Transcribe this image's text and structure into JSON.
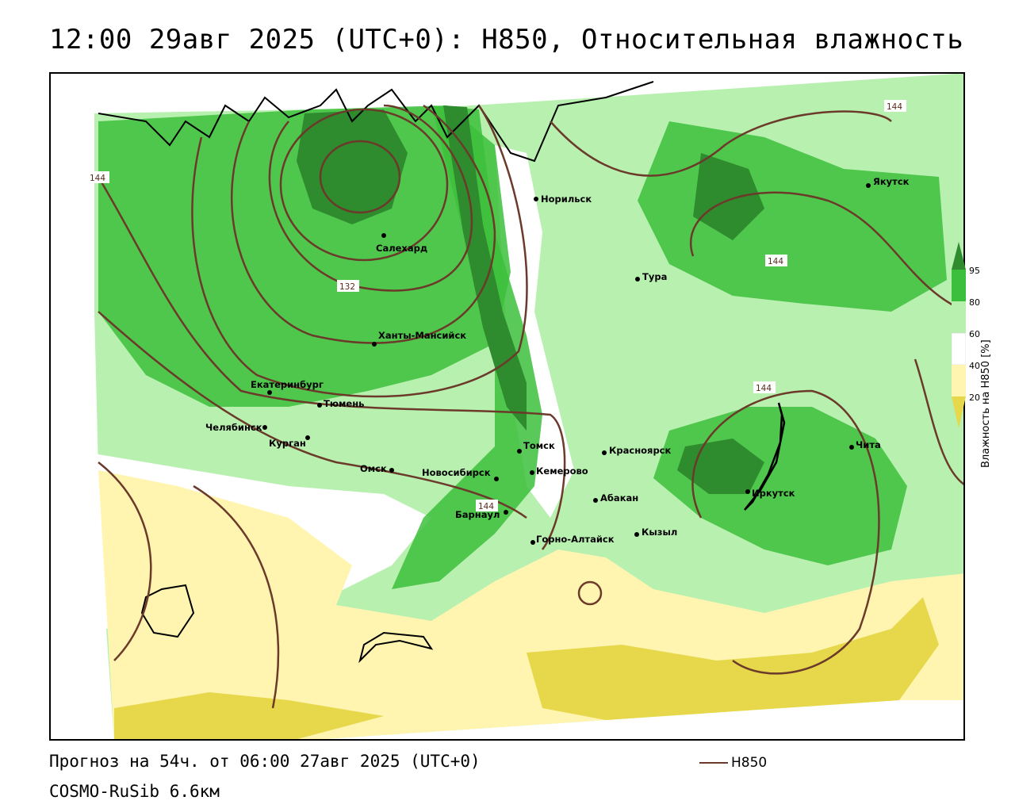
{
  "header": {
    "title": "12:00 29авг 2025 (UTC+0): H850, Относительная влажность"
  },
  "map": {
    "cities": [
      {
        "name": "Салехард"
      },
      {
        "name": "Норильск"
      },
      {
        "name": "Якутск"
      },
      {
        "name": "Тура"
      },
      {
        "name": "Ханты-Мансийск"
      },
      {
        "name": "Екатеринбург"
      },
      {
        "name": "Тюмень"
      },
      {
        "name": "Челябинск"
      },
      {
        "name": "Курган"
      },
      {
        "name": "Омск"
      },
      {
        "name": "Новосибирск"
      },
      {
        "name": "Томск"
      },
      {
        "name": "Кемерово"
      },
      {
        "name": "Красноярск"
      },
      {
        "name": "Барнаул"
      },
      {
        "name": "Абакан"
      },
      {
        "name": "Горно-Алтайск"
      },
      {
        "name": "Кызыл"
      },
      {
        "name": "Иркутск"
      },
      {
        "name": "Чита"
      }
    ],
    "isoline_labels": [
      "144",
      "132",
      "144",
      "144",
      "144",
      "144"
    ],
    "colors": {
      "rh_95": "#2e8b2e",
      "rh_80": "#3cbf3c",
      "rh_60": "#b8f0b0",
      "rh_50": "#ffffff",
      "rh_40": "#fff5b0",
      "rh_20": "#e6d84a",
      "isoline": "#6b3a2a",
      "coast": "#000000"
    }
  },
  "legend": {
    "ticks": [
      "95",
      "80",
      "60",
      "40",
      "20"
    ],
    "title": "Влажность на H850 [%]"
  },
  "footer": {
    "forecast": "Прогноз на 54ч. от 06:00 27авг 2025 (UTC+0)",
    "model": "COSMO-RuSib 6.6км",
    "line_legend": "H850"
  }
}
